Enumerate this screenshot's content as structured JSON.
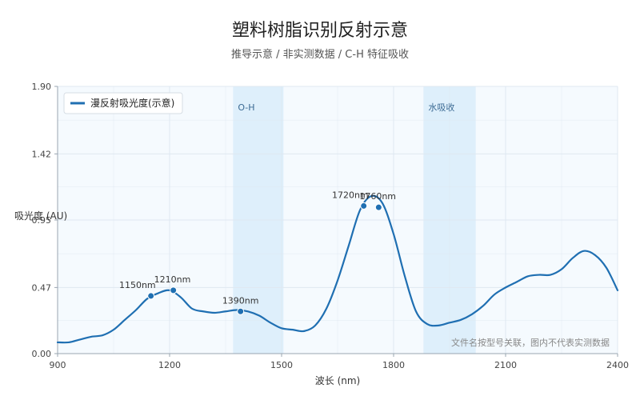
{
  "header": {
    "title": "塑料树脂识别反射示意",
    "subtitle": "推导示意 / 非实测数据 / C-H 特征吸收"
  },
  "colors": {
    "line": "#1f6fb2",
    "band": "#d9ecfa",
    "plot_bg": "#f5fafe",
    "grid": "#dfe8f1"
  },
  "chart_data": {
    "type": "line",
    "title": "塑料树脂识别反射示意",
    "subtitle": "推导示意 / 非实测数据 / C-H 特征吸收",
    "xlabel": "波长 (nm)",
    "ylabel": "吸光度 (AU)",
    "xlim": [
      900,
      2400
    ],
    "ylim": [
      0,
      1.9
    ],
    "x_ticks": [
      900,
      1200,
      1500,
      1800,
      2100,
      2400
    ],
    "y_ticks": [
      0.0,
      0.47,
      0.95,
      1.42,
      1.9
    ],
    "y_tick_labels": [
      "0.00",
      "0.47",
      "0.95",
      "1.42",
      "1.90"
    ],
    "grid": true,
    "legend_position": "top-left",
    "series": [
      {
        "name": "漫反射吸光度(示意)",
        "x": [
          900,
          930,
          960,
          990,
          1020,
          1050,
          1080,
          1110,
          1140,
          1170,
          1200,
          1230,
          1260,
          1290,
          1320,
          1350,
          1380,
          1410,
          1440,
          1470,
          1500,
          1530,
          1560,
          1590,
          1620,
          1650,
          1680,
          1710,
          1740,
          1770,
          1800,
          1830,
          1860,
          1890,
          1920,
          1950,
          1980,
          2010,
          2040,
          2070,
          2100,
          2130,
          2160,
          2190,
          2220,
          2250,
          2280,
          2310,
          2340,
          2370,
          2400
        ],
        "y": [
          0.08,
          0.08,
          0.1,
          0.12,
          0.13,
          0.17,
          0.24,
          0.31,
          0.39,
          0.43,
          0.45,
          0.4,
          0.32,
          0.3,
          0.29,
          0.3,
          0.31,
          0.3,
          0.27,
          0.22,
          0.18,
          0.17,
          0.16,
          0.2,
          0.32,
          0.52,
          0.77,
          1.02,
          1.12,
          1.07,
          0.85,
          0.55,
          0.3,
          0.21,
          0.2,
          0.22,
          0.24,
          0.28,
          0.34,
          0.42,
          0.47,
          0.51,
          0.55,
          0.56,
          0.56,
          0.6,
          0.68,
          0.73,
          0.7,
          0.61,
          0.45
        ]
      }
    ],
    "bands": [
      {
        "label": "O-H",
        "x_start": 1370,
        "x_end": 1505
      },
      {
        "label": "水吸收",
        "x_start": 1880,
        "x_end": 2020
      }
    ],
    "annotations": [
      {
        "label": "1150nm",
        "x": 1150,
        "y": 0.41,
        "anchor": "end"
      },
      {
        "label": "1210nm",
        "x": 1210,
        "y": 0.45,
        "anchor": "start"
      },
      {
        "label": "1390nm",
        "x": 1390,
        "y": 0.3,
        "anchor": "middle"
      },
      {
        "label": "1720nm",
        "x": 1720,
        "y": 1.05,
        "anchor": "end"
      },
      {
        "label": "1760nm",
        "x": 1760,
        "y": 1.04,
        "anchor": "start"
      }
    ],
    "watermark": "文件名按型号关联，图内不代表实测数据"
  }
}
